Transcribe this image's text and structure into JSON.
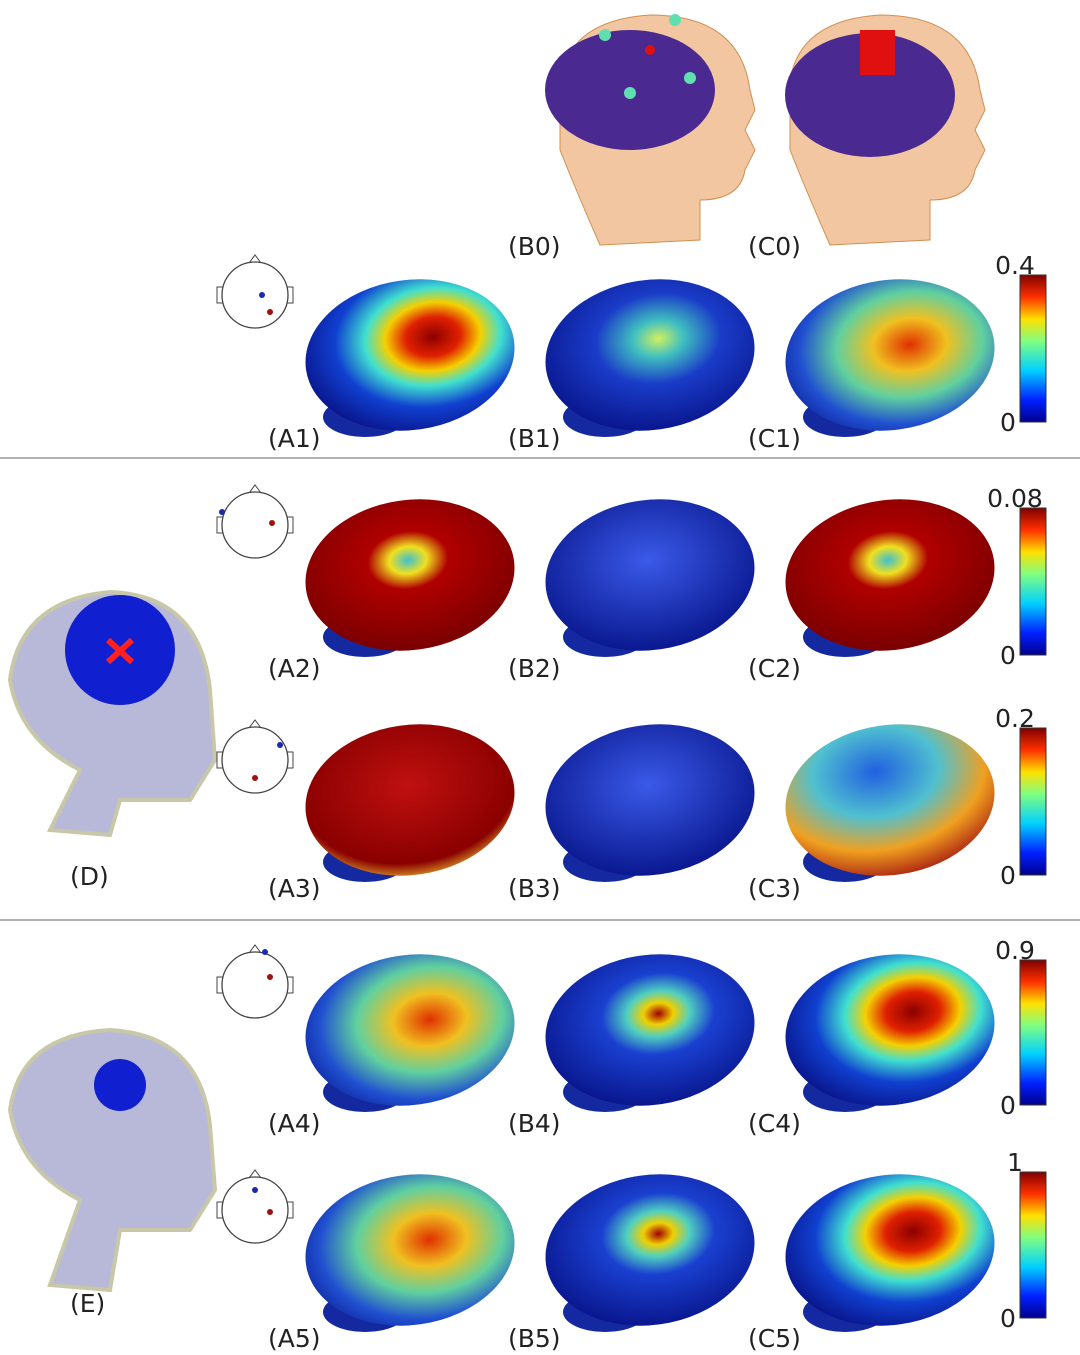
{
  "panel_labels": [
    "(B0)",
    "(C0)",
    "(A1)",
    "(B1)",
    "(C1)",
    "(A2)",
    "(B2)",
    "(C2)",
    "(A3)",
    "(B3)",
    "(C3)",
    "(A4)",
    "(B4)",
    "(C4)",
    "(A5)",
    "(B5)",
    "(C5)",
    "(D)",
    "(E)"
  ],
  "colorbars": [
    {
      "max": 0.4,
      "min": 0
    },
    {
      "max": 0.08,
      "min": 0
    },
    {
      "max": 0.2,
      "min": 0
    },
    {
      "max": 0.9,
      "min": 0
    },
    {
      "max": 1,
      "min": 0
    }
  ]
}
